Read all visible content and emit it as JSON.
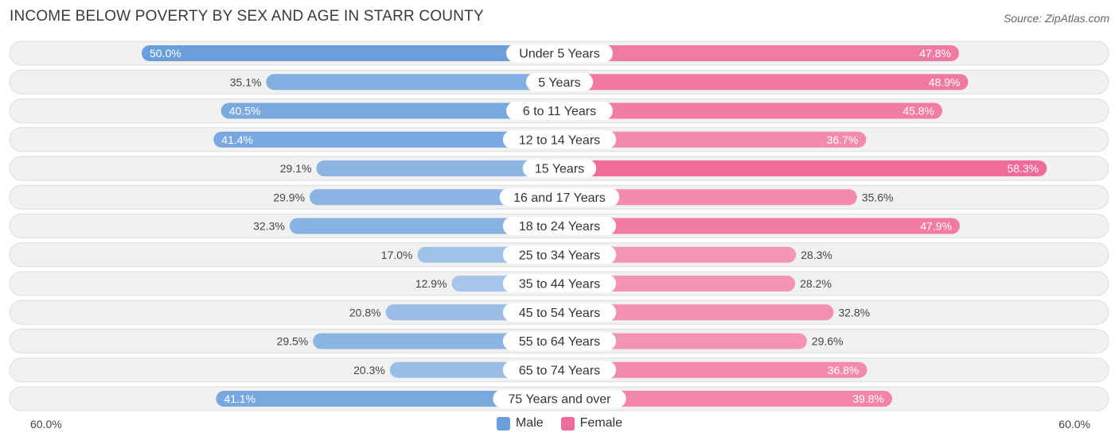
{
  "title": "INCOME BELOW POVERTY BY SEX AND AGE IN STARR COUNTY",
  "source": "Source: ZipAtlas.com",
  "colors": {
    "male": "#6a9fdc",
    "female": "#f06b96",
    "row_bg": "#f1f1f1",
    "row_border": "#dddddd"
  },
  "legend": {
    "male": "Male",
    "female": "Female"
  },
  "axis": {
    "left_label": "60.0%",
    "right_label": "60.0%"
  },
  "chart_data": {
    "type": "bar",
    "orientation": "horizontal-diverging",
    "xlim": [
      -60,
      60
    ],
    "categories": [
      "Under 5 Years",
      "5 Years",
      "6 to 11 Years",
      "12 to 14 Years",
      "15 Years",
      "16 and 17 Years",
      "18 to 24 Years",
      "25 to 34 Years",
      "35 to 44 Years",
      "45 to 54 Years",
      "55 to 64 Years",
      "65 to 74 Years",
      "75 Years and over"
    ],
    "series": [
      {
        "name": "Male",
        "values": [
          50.0,
          35.1,
          40.5,
          41.4,
          29.1,
          29.9,
          32.3,
          17.0,
          12.9,
          20.8,
          29.5,
          20.3,
          41.1
        ]
      },
      {
        "name": "Female",
        "values": [
          47.8,
          48.9,
          45.8,
          36.7,
          58.3,
          35.6,
          47.9,
          28.3,
          28.2,
          32.8,
          29.6,
          36.8,
          39.8
        ]
      }
    ]
  }
}
